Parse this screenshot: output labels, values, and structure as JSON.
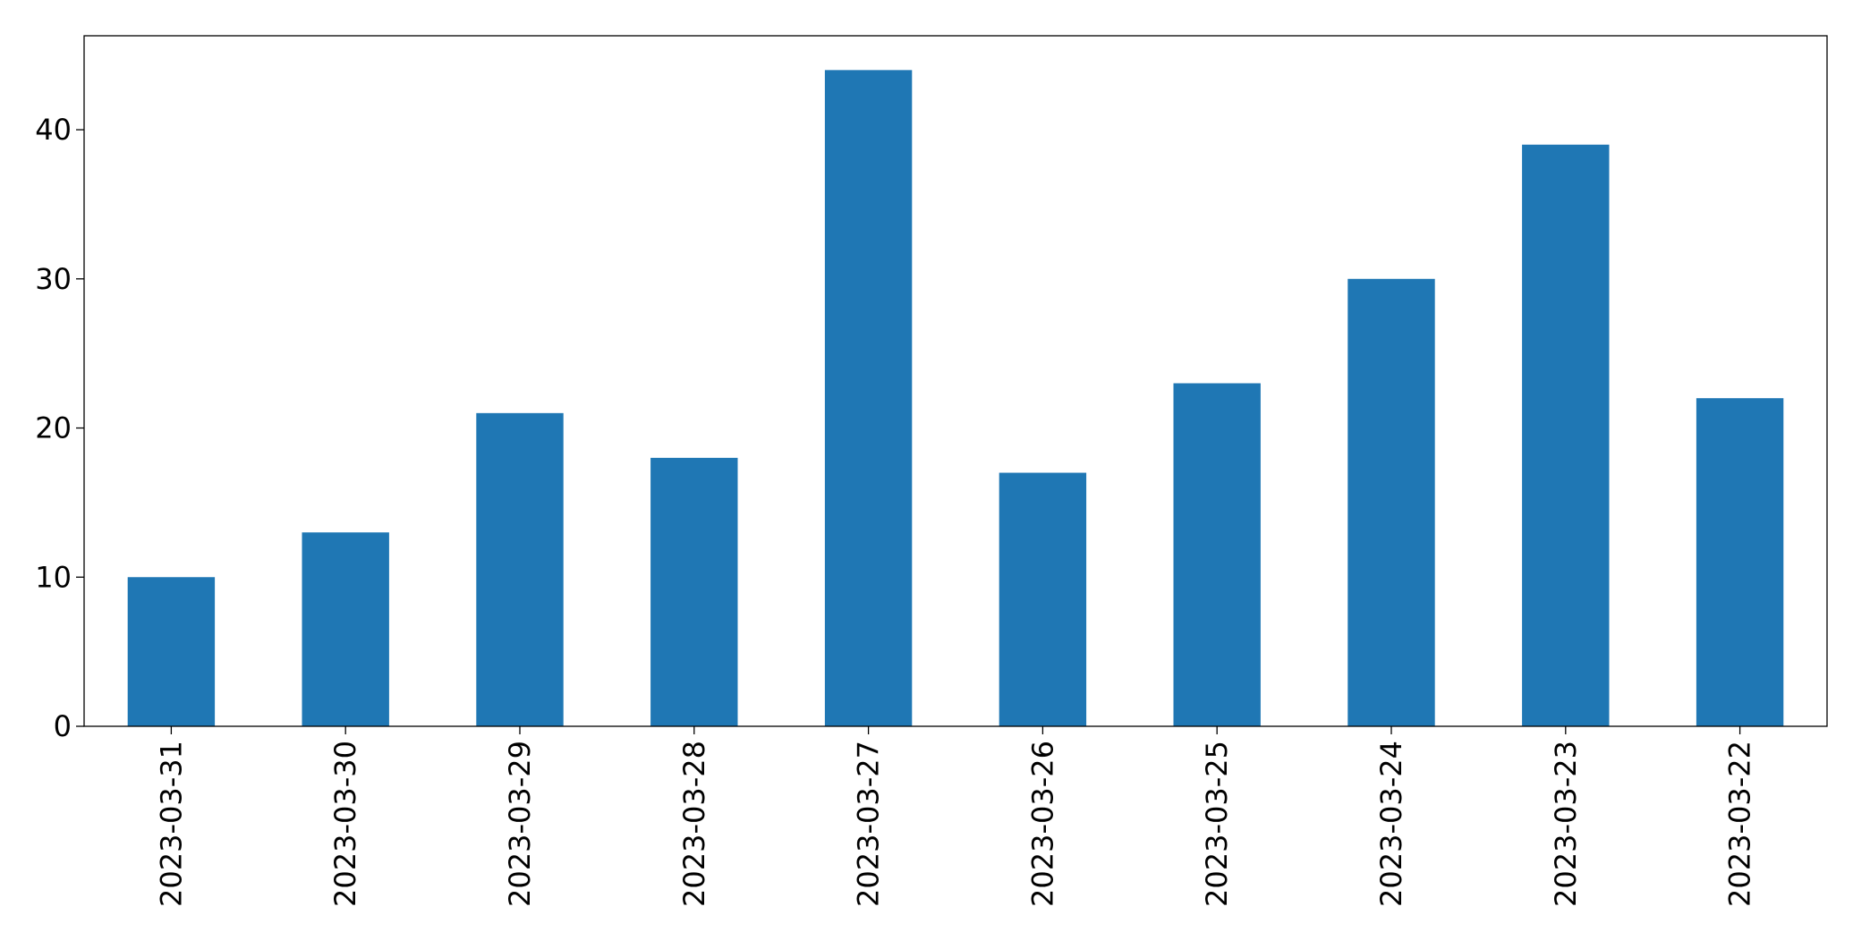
{
  "chart_data": {
    "type": "bar",
    "categories": [
      "2023-03-31",
      "2023-03-30",
      "2023-03-29",
      "2023-03-28",
      "2023-03-27",
      "2023-03-26",
      "2023-03-25",
      "2023-03-24",
      "2023-03-23",
      "2023-03-22"
    ],
    "values": [
      10,
      13,
      21,
      18,
      44,
      17,
      23,
      30,
      39,
      22
    ],
    "color": "#1f77b4",
    "ylim": [
      0,
      46.3
    ],
    "yticks": [
      0,
      10,
      20,
      30,
      40
    ],
    "grid": false
  }
}
